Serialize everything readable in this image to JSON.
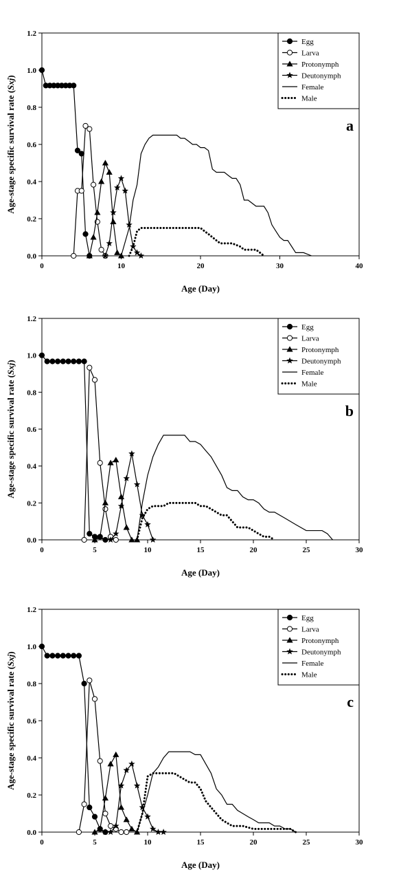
{
  "chart_data": [
    {
      "type": "line",
      "panel_label": "a",
      "xlabel": "Age (Day)",
      "ylabel": "Age-stage specific survival rate (Sxj)",
      "xlim": [
        0,
        40
      ],
      "ylim": [
        0,
        1.2
      ],
      "xticks": [
        0,
        10,
        20,
        30,
        40
      ],
      "yticks": [
        0.0,
        0.2,
        0.4,
        0.6,
        0.8,
        1.0,
        1.2
      ],
      "legend_position": "top-right",
      "series": [
        {
          "name": "Egg",
          "marker": "circle-filled",
          "line": "solid",
          "x": [
            0,
            0.5,
            1,
            1.5,
            2,
            2.5,
            3,
            3.5,
            4,
            4.5,
            5,
            5.5,
            6
          ],
          "y": [
            1.0,
            0.917,
            0.917,
            0.917,
            0.917,
            0.917,
            0.917,
            0.917,
            0.917,
            0.567,
            0.55,
            0.117,
            0
          ]
        },
        {
          "name": "Larva",
          "marker": "circle-open",
          "line": "solid",
          "x": [
            4,
            4.5,
            5,
            5.5,
            6,
            6.5,
            7,
            7.5,
            8
          ],
          "y": [
            0,
            0.35,
            0.35,
            0.7,
            0.683,
            0.383,
            0.183,
            0.033,
            0
          ]
        },
        {
          "name": "Protonymph",
          "marker": "triangle-filled",
          "line": "solid",
          "x": [
            6,
            6.5,
            7,
            7.5,
            8,
            8.5,
            9,
            9.5,
            10
          ],
          "y": [
            0,
            0.1,
            0.233,
            0.4,
            0.5,
            0.45,
            0.183,
            0.017,
            0
          ]
        },
        {
          "name": "Deutonymph",
          "marker": "star-filled",
          "line": "solid",
          "x": [
            8,
            8.5,
            9,
            9.5,
            10,
            10.5,
            11,
            11.5,
            12,
            12.5
          ],
          "y": [
            0,
            0.067,
            0.233,
            0.367,
            0.417,
            0.35,
            0.167,
            0.05,
            0.017,
            0
          ]
        },
        {
          "name": "Female",
          "marker": "none",
          "line": "solid",
          "x": [
            10,
            11,
            11.5,
            12,
            12.5,
            13,
            13.5,
            14,
            15,
            16,
            17,
            17.5,
            18,
            18.5,
            19,
            19.5,
            20,
            20.5,
            21,
            21.5,
            22,
            23,
            23.5,
            24,
            24.5,
            25,
            25.5,
            26,
            27,
            27.5,
            28,
            28.5,
            29,
            29.5,
            30,
            30.5,
            31,
            31.5,
            32,
            33,
            34
          ],
          "y": [
            0,
            0.15,
            0.3,
            0.383,
            0.55,
            0.6,
            0.633,
            0.65,
            0.65,
            0.65,
            0.65,
            0.633,
            0.633,
            0.617,
            0.6,
            0.6,
            0.583,
            0.583,
            0.567,
            0.467,
            0.45,
            0.45,
            0.433,
            0.417,
            0.417,
            0.383,
            0.3,
            0.3,
            0.267,
            0.267,
            0.267,
            0.233,
            0.167,
            0.133,
            0.1,
            0.083,
            0.083,
            0.05,
            0.017,
            0.017,
            0
          ]
        },
        {
          "name": "Male",
          "marker": "none",
          "line": "dotted",
          "x": [
            11,
            11.5,
            12,
            12.5,
            13,
            14,
            15,
            16,
            17,
            18,
            19,
            20,
            20.5,
            21,
            22,
            22.5,
            23,
            24,
            25,
            25.5,
            26,
            27,
            27.5,
            28
          ],
          "y": [
            0,
            0.05,
            0.133,
            0.15,
            0.15,
            0.15,
            0.15,
            0.15,
            0.15,
            0.15,
            0.15,
            0.15,
            0.133,
            0.117,
            0.083,
            0.067,
            0.067,
            0.067,
            0.05,
            0.033,
            0.033,
            0.033,
            0.017,
            0
          ]
        }
      ]
    },
    {
      "type": "line",
      "panel_label": "b",
      "xlabel": "Age (Day)",
      "ylabel": "Age-stage specific survival rate (Sxj)",
      "xlim": [
        0,
        30
      ],
      "ylim": [
        0,
        1.2
      ],
      "xticks": [
        0,
        5,
        10,
        15,
        20,
        25,
        30
      ],
      "yticks": [
        0.0,
        0.2,
        0.4,
        0.6,
        0.8,
        1.0,
        1.2
      ],
      "legend_position": "top-right",
      "series": [
        {
          "name": "Egg",
          "marker": "circle-filled",
          "line": "solid",
          "x": [
            0,
            0.5,
            1,
            1.5,
            2,
            2.5,
            3,
            3.5,
            4,
            4.5,
            5,
            5.5,
            6
          ],
          "y": [
            1.0,
            0.967,
            0.967,
            0.967,
            0.967,
            0.967,
            0.967,
            0.967,
            0.967,
            0.033,
            0.017,
            0.017,
            0
          ]
        },
        {
          "name": "Larva",
          "marker": "circle-open",
          "line": "solid",
          "x": [
            4,
            4.5,
            5,
            5.5,
            6,
            6.5,
            7
          ],
          "y": [
            0,
            0.933,
            0.867,
            0.417,
            0.167,
            0.017,
            0
          ]
        },
        {
          "name": "Protonymph",
          "marker": "triangle-filled",
          "line": "solid",
          "x": [
            5,
            5.5,
            6,
            6.5,
            7,
            7.5,
            8,
            8.5,
            9
          ],
          "y": [
            0,
            0.017,
            0.2,
            0.417,
            0.433,
            0.233,
            0.067,
            0,
            0
          ]
        },
        {
          "name": "Deutonymph",
          "marker": "star-filled",
          "line": "solid",
          "x": [
            6.5,
            7,
            7.5,
            8,
            8.5,
            9,
            9.5,
            10,
            10.5
          ],
          "y": [
            0,
            0.033,
            0.183,
            0.333,
            0.467,
            0.3,
            0.133,
            0.083,
            0
          ]
        },
        {
          "name": "Female",
          "marker": "none",
          "line": "solid",
          "x": [
            9,
            9.5,
            10,
            10.5,
            11,
            11.5,
            12,
            12.5,
            13,
            13.5,
            14,
            14.5,
            15,
            15.5,
            16,
            16.5,
            17,
            17.5,
            18,
            18.5,
            19,
            19.5,
            20,
            20.5,
            21,
            21.5,
            22,
            23,
            24,
            25,
            26,
            26.5,
            27,
            27.5
          ],
          "y": [
            0,
            0.2,
            0.35,
            0.45,
            0.517,
            0.567,
            0.567,
            0.567,
            0.567,
            0.567,
            0.533,
            0.533,
            0.517,
            0.483,
            0.45,
            0.4,
            0.35,
            0.283,
            0.267,
            0.267,
            0.233,
            0.217,
            0.217,
            0.2,
            0.167,
            0.15,
            0.15,
            0.117,
            0.083,
            0.05,
            0.05,
            0.05,
            0.033,
            0
          ]
        },
        {
          "name": "Male",
          "marker": "none",
          "line": "dotted",
          "x": [
            9,
            9.5,
            10,
            10.5,
            11,
            11.5,
            12,
            12.5,
            13,
            13.5,
            14,
            14.5,
            15,
            15.5,
            16,
            16.5,
            17,
            17.5,
            18,
            18.5,
            19,
            19.5,
            20,
            20.5,
            21,
            21.5,
            22
          ],
          "y": [
            0,
            0.117,
            0.167,
            0.183,
            0.183,
            0.183,
            0.2,
            0.2,
            0.2,
            0.2,
            0.2,
            0.2,
            0.183,
            0.183,
            0.167,
            0.15,
            0.133,
            0.133,
            0.1,
            0.067,
            0.067,
            0.067,
            0.05,
            0.033,
            0.017,
            0.017,
            0
          ]
        }
      ]
    },
    {
      "type": "line",
      "panel_label": "c",
      "xlabel": "Age (Day)",
      "ylabel": "Age-stage specific survival rate (Sxj)",
      "xlim": [
        0,
        30
      ],
      "ylim": [
        0,
        1.2
      ],
      "xticks": [
        0,
        5,
        10,
        15,
        20,
        25,
        30
      ],
      "yticks": [
        0.0,
        0.2,
        0.4,
        0.6,
        0.8,
        1.0,
        1.2
      ],
      "legend_position": "top-right",
      "series": [
        {
          "name": "Egg",
          "marker": "circle-filled",
          "line": "solid",
          "x": [
            0,
            0.5,
            1,
            1.5,
            2,
            2.5,
            3,
            3.5,
            4,
            4.5,
            5,
            5.5,
            6
          ],
          "y": [
            1.0,
            0.95,
            0.95,
            0.95,
            0.95,
            0.95,
            0.95,
            0.95,
            0.8,
            0.133,
            0.083,
            0.017,
            0
          ]
        },
        {
          "name": "Larva",
          "marker": "circle-open",
          "line": "solid",
          "x": [
            3.5,
            4,
            4.5,
            5,
            5.5,
            6,
            6.5,
            7,
            7.5,
            8
          ],
          "y": [
            0,
            0.15,
            0.817,
            0.717,
            0.383,
            0.1,
            0.033,
            0.017,
            0,
            0
          ]
        },
        {
          "name": "Protonymph",
          "marker": "triangle-filled",
          "line": "solid",
          "x": [
            5,
            5.5,
            6,
            6.5,
            7,
            7.5,
            8,
            8.5,
            9
          ],
          "y": [
            0,
            0.017,
            0.183,
            0.367,
            0.417,
            0.133,
            0.067,
            0.017,
            0
          ]
        },
        {
          "name": "Deutonymph",
          "marker": "star-filled",
          "line": "solid",
          "x": [
            6,
            6.5,
            7,
            7.5,
            8,
            8.5,
            9,
            9.5,
            10,
            10.5,
            11,
            11.5
          ],
          "y": [
            0,
            0,
            0.033,
            0.25,
            0.333,
            0.367,
            0.25,
            0.133,
            0.083,
            0.017,
            0,
            0
          ]
        },
        {
          "name": "Female",
          "marker": "none",
          "line": "solid",
          "x": [
            9,
            9.5,
            10,
            10.5,
            11,
            11.5,
            12,
            12.5,
            13,
            13.5,
            14,
            14.5,
            15,
            15.5,
            16,
            16.5,
            17,
            17.5,
            18,
            18.5,
            19,
            19.5,
            20,
            20.5,
            21,
            21.5,
            22,
            22.5,
            23,
            23.5,
            24
          ],
          "y": [
            0,
            0.1,
            0.2,
            0.317,
            0.35,
            0.4,
            0.433,
            0.433,
            0.433,
            0.433,
            0.433,
            0.417,
            0.417,
            0.367,
            0.317,
            0.233,
            0.2,
            0.15,
            0.15,
            0.117,
            0.1,
            0.083,
            0.067,
            0.05,
            0.05,
            0.05,
            0.033,
            0.033,
            0.017,
            0.017,
            0
          ]
        },
        {
          "name": "Male",
          "marker": "none",
          "line": "dotted",
          "x": [
            9,
            9.5,
            10,
            10.5,
            11,
            11.5,
            12,
            12.5,
            13,
            13.5,
            14,
            14.5,
            15,
            15.5,
            16,
            16.5,
            17,
            17.5,
            18,
            18.5,
            19,
            20,
            21,
            22,
            23,
            23.5,
            24
          ],
          "y": [
            0,
            0.1,
            0.3,
            0.317,
            0.317,
            0.317,
            0.317,
            0.317,
            0.3,
            0.283,
            0.267,
            0.267,
            0.233,
            0.167,
            0.133,
            0.1,
            0.067,
            0.05,
            0.033,
            0.033,
            0.033,
            0.017,
            0.017,
            0.017,
            0.017,
            0.017,
            0
          ]
        }
      ]
    }
  ]
}
